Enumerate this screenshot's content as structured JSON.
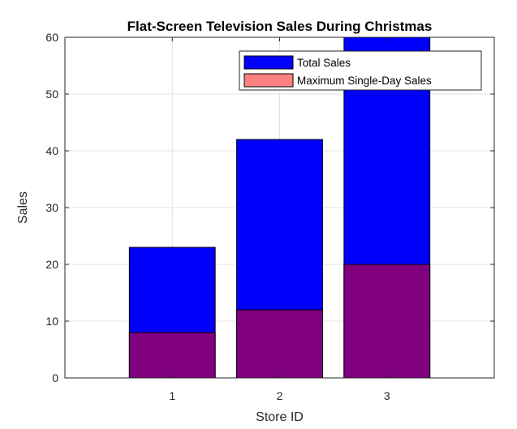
{
  "chart_data": {
    "type": "bar",
    "title": "Flat-Screen Television Sales During Christmas",
    "xlabel": "Store ID",
    "ylabel": "Sales",
    "categories": [
      "1",
      "2",
      "3"
    ],
    "series": [
      {
        "name": "Total Sales",
        "values": [
          23,
          42,
          60
        ],
        "color": "#0000ff"
      },
      {
        "name": "Maximum Single-Day Sales",
        "values": [
          8,
          12,
          20
        ],
        "color": "#ff8080",
        "alpha": 0.5
      }
    ],
    "xlim": [
      0,
      4
    ],
    "ylim": [
      0,
      60
    ],
    "yticks": [
      0,
      10,
      20,
      30,
      40,
      50,
      60
    ],
    "grid": true,
    "legend": "top-right",
    "overlap_color": "#800080"
  }
}
